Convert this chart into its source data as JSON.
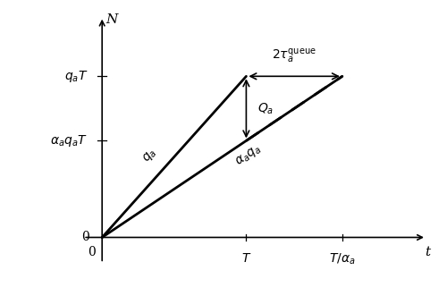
{
  "alpha": 0.6,
  "T": 1.0,
  "qa": 1.0,
  "figsize": [
    5.0,
    3.31
  ],
  "dpi": 100,
  "xlim": [
    -0.15,
    2.3
  ],
  "ylim": [
    -0.18,
    1.4
  ],
  "x_axis_label": "t",
  "y_axis_label": "N",
  "label_q_a": "$q_a$",
  "label_alpha_qa": "$\\alpha_a q_a$",
  "label_Qa": "$Q_a$",
  "label_tau": "$2\\tau_a^{\\mathrm{queue}}$",
  "label_qaT": "$q_aT$",
  "label_alphaqaT": "$\\alpha_a q_aT$",
  "label_T": "$T$",
  "label_Talpha": "$T/\\alpha_a$",
  "label_zero_x": "0",
  "label_zero_y": "0",
  "lw_line": 2.0,
  "lw_axis": 1.2,
  "fs": 10
}
